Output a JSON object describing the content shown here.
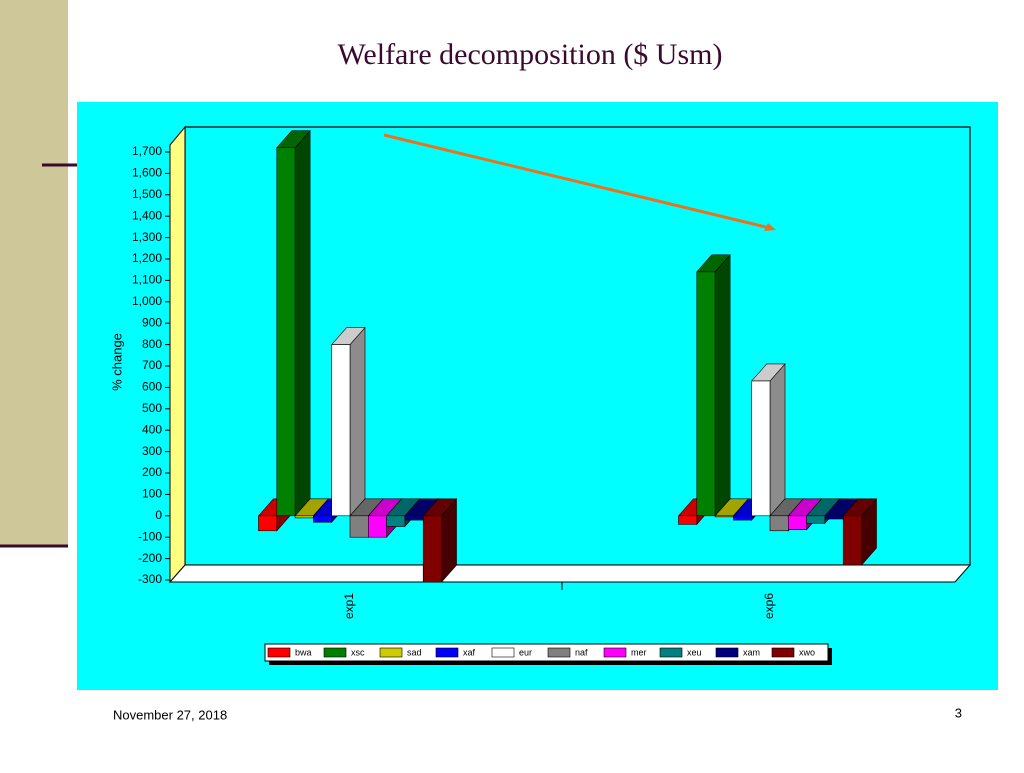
{
  "chart_data": {
    "type": "bar3d",
    "title": "Welfare decomposition ($ Usm)",
    "y_label": "% change",
    "categories": [
      "exp1",
      "exp6"
    ],
    "series": [
      {
        "name": "bwa",
        "color": "#ff0000",
        "values": [
          -70,
          -40
        ]
      },
      {
        "name": "xsc",
        "color": "#008000",
        "values": [
          1720,
          1140
        ]
      },
      {
        "name": "sad",
        "color": "#cccc00",
        "values": [
          -10,
          -5
        ]
      },
      {
        "name": "xaf",
        "color": "#0000ff",
        "values": [
          -30,
          -20
        ]
      },
      {
        "name": "eur",
        "color": "#ffffff",
        "values": [
          800,
          630
        ]
      },
      {
        "name": "naf",
        "color": "#808080",
        "values": [
          -100,
          -70
        ]
      },
      {
        "name": "mer",
        "color": "#ff00ff",
        "values": [
          -100,
          -65
        ]
      },
      {
        "name": "xeu",
        "color": "#008080",
        "values": [
          -50,
          -35
        ]
      },
      {
        "name": "xam",
        "color": "#000080",
        "values": [
          -20,
          -15
        ]
      },
      {
        "name": "xwo",
        "color": "#800000",
        "values": [
          -310,
          -230
        ]
      }
    ],
    "ylim": [
      -300,
      1700
    ],
    "yticks": [
      -300,
      -200,
      -100,
      0,
      100,
      200,
      300,
      400,
      500,
      600,
      700,
      800,
      900,
      {
        "value": 1000,
        "label": "1,000"
      },
      {
        "value": 1100,
        "label": "1,100"
      },
      {
        "value": 1200,
        "label": "1,200"
      },
      {
        "value": 1300,
        "label": "1,300"
      },
      {
        "value": 1400,
        "label": "1,400"
      },
      {
        "value": 1500,
        "label": "1,500"
      },
      {
        "value": 1600,
        "label": "1,600"
      },
      {
        "value": 1700,
        "label": "1,700"
      }
    ],
    "grid": false
  },
  "slide": {
    "date": "November 27, 2018",
    "page_number": "3"
  }
}
